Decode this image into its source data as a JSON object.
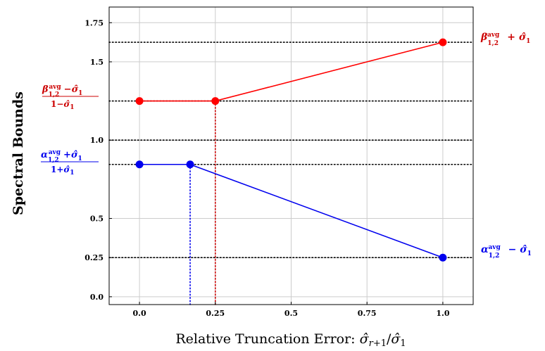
{
  "chart_data": {
    "type": "line",
    "xlabel": "Relative Truncation Error: σ̂ r+1/σ̂ 1",
    "ylabel": "Spectral Bounds",
    "xlim": [
      -0.1,
      1.1
    ],
    "ylim": [
      -0.05,
      1.85
    ],
    "x_ticks": [
      {
        "value": 0.0,
        "label": "0.0"
      },
      {
        "value": 0.25,
        "label": "0.25",
        "color": "#cc0000"
      },
      {
        "value": 0.5,
        "label": "0.5"
      },
      {
        "value": 0.75,
        "label": "0.75"
      },
      {
        "value": 1.0,
        "label": "1.0"
      }
    ],
    "y_ticks": [
      {
        "value": 0.0,
        "label": "0.0"
      },
      {
        "value": 0.25,
        "label": "0.25"
      },
      {
        "value": 0.5,
        "label": "0.5"
      },
      {
        "value": 1.0,
        "label": "1.0"
      },
      {
        "value": 1.5,
        "label": "1.5"
      },
      {
        "value": 1.75,
        "label": "1.75"
      }
    ],
    "grid": true,
    "series": [
      {
        "color": "#ff0000",
        "points": [
          [
            0.0,
            1.25
          ],
          [
            0.25,
            1.25
          ],
          [
            1.0,
            1.625
          ]
        ]
      },
      {
        "color": "#0000ee",
        "points": [
          [
            0.0,
            0.845
          ],
          [
            0.167,
            0.845
          ],
          [
            1.0,
            0.25
          ]
        ]
      }
    ],
    "hlines": [
      {
        "value": 1.625,
        "color": "#000000"
      },
      {
        "value": 1.25,
        "color": "#000000"
      },
      {
        "value": 1.0,
        "color": "#000000"
      },
      {
        "value": 0.845,
        "color": "#000000"
      },
      {
        "value": 0.25,
        "color": "#000000"
      }
    ],
    "vlines": [
      {
        "value": 0.25,
        "ymax": 1.25,
        "color": "#cc0000"
      },
      {
        "value": 0.167,
        "ymax": 0.845,
        "color": "#0000ee"
      }
    ],
    "annotations": [
      {
        "id": "beta-plus",
        "color": "#cc0000",
        "side": "right",
        "y": 1.625,
        "text": "β^avg_1,2 + σ̂1"
      },
      {
        "id": "alpha-minus",
        "color": "#0000ee",
        "side": "right",
        "y": 0.25,
        "text": "α^avg_1,2 − σ̂1"
      },
      {
        "id": "beta-frac",
        "color": "#cc0000",
        "side": "left",
        "y": 1.25,
        "text": "(β^avg_1,2 − σ̂1)/(1 − σ̂1)"
      },
      {
        "id": "alpha-frac",
        "color": "#0000ee",
        "side": "left",
        "y": 0.845,
        "text": "(α^avg_1,2 + σ̂1)/(1 + σ̂1)"
      }
    ]
  }
}
